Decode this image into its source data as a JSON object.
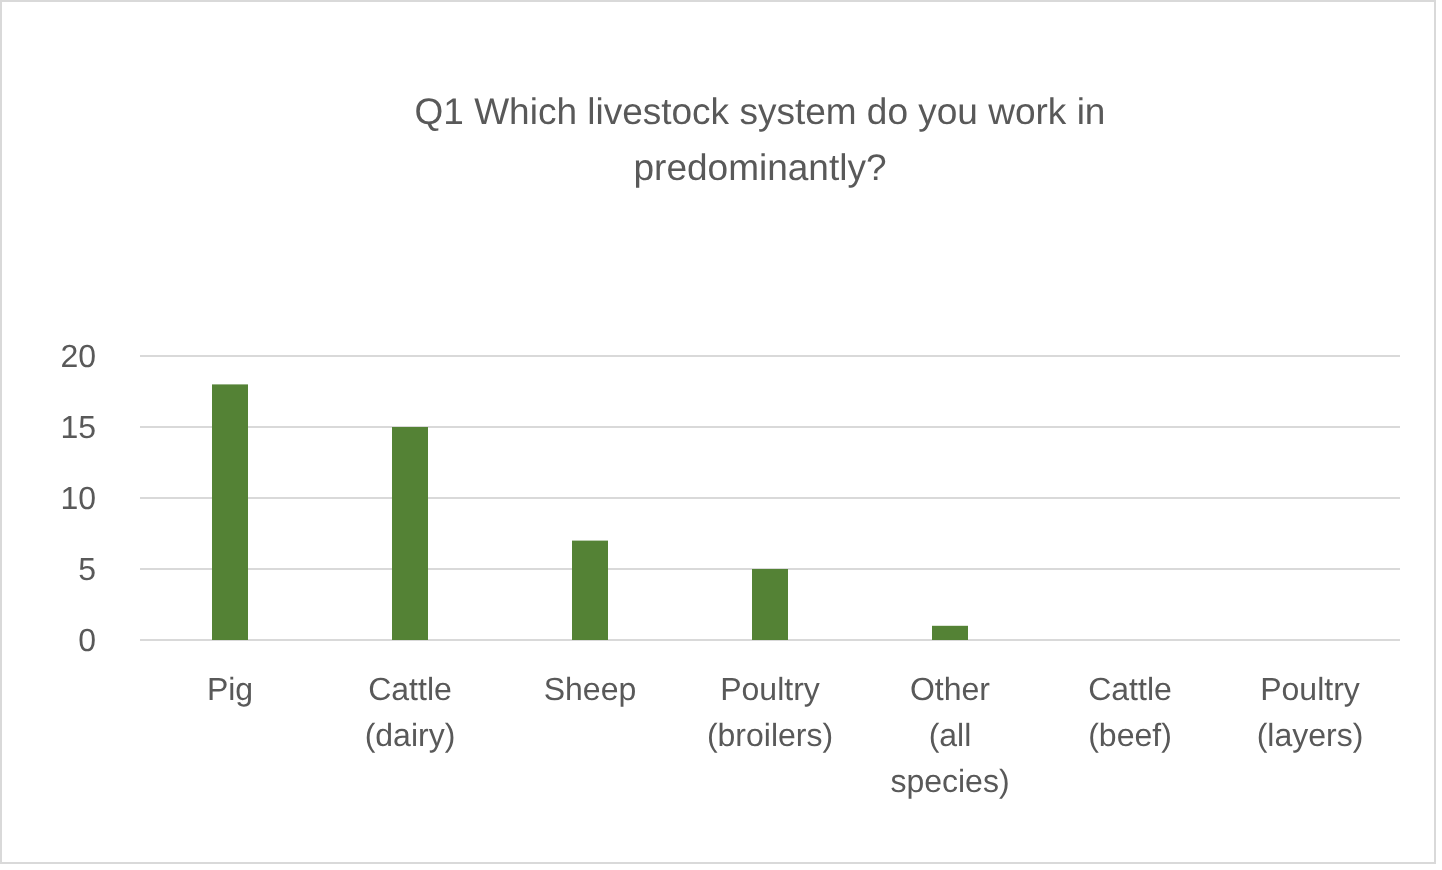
{
  "chart_data": {
    "type": "bar",
    "title": "Q1 Which livestock system do you work in predominantly?",
    "categories": [
      "Pig",
      "Cattle (dairy)",
      "Sheep",
      "Poultry (broilers)",
      "Other (all species)",
      "Cattle (beef)",
      "Poultry (layers)"
    ],
    "values": [
      18,
      15,
      7,
      5,
      1,
      0,
      0
    ],
    "color": "#548235",
    "ylim": [
      0,
      20
    ],
    "yticks": [
      0,
      5,
      10,
      15,
      20
    ],
    "grid": "y"
  }
}
